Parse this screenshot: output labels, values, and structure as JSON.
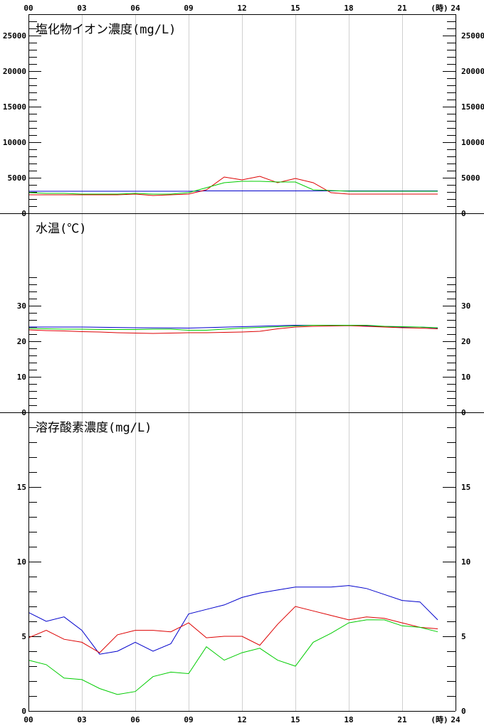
{
  "chart_data": {
    "type": "line",
    "x_ticks": [
      "00",
      "03",
      "06",
      "09",
      "12",
      "15",
      "18",
      "21",
      "24"
    ],
    "x_unit": "(時)",
    "x_range": [
      0,
      24
    ],
    "colors": {
      "blue": "#0000cc",
      "red": "#dd0000",
      "green": "#00cc00",
      "grid": "#d0d0d0",
      "axis": "#000000"
    },
    "panels": [
      {
        "title": "塩化物イオン濃度(mg/L)",
        "ylim": [
          0,
          28000
        ],
        "major_step": 5000,
        "minor_step": 1000,
        "y_ticks": [
          "0",
          "5000",
          "10000",
          "15000",
          "20000",
          "25000"
        ],
        "series": [
          {
            "color": "blue",
            "x": [
              0,
              9,
              10,
              11,
              12,
              13,
              14,
              15,
              16,
              17,
              18,
              19,
              20,
              21,
              22,
              23
            ],
            "values": [
              3100,
              3100,
              3150,
              3150,
              3150,
              3150,
              3150,
              3150,
              3150,
              3150,
              3150,
              3150,
              3150,
              3150,
              3150,
              3150
            ]
          },
          {
            "color": "red",
            "x": [
              0,
              1,
              2,
              3,
              4,
              5,
              6,
              7,
              8,
              9,
              10,
              11,
              12,
              13,
              14,
              15,
              16,
              17,
              18,
              19,
              20,
              21,
              22,
              23
            ],
            "values": [
              2600,
              2600,
              2600,
              2600,
              2600,
              2600,
              2700,
              2500,
              2600,
              2700,
              3300,
              5100,
              4700,
              5200,
              4300,
              4900,
              4300,
              2900,
              2700,
              2700,
              2700,
              2700,
              2700,
              2700
            ]
          },
          {
            "color": "green",
            "x": [
              0,
              1,
              2,
              3,
              4,
              5,
              6,
              7,
              8,
              9,
              10,
              11,
              12,
              13,
              14,
              15,
              16,
              17,
              18,
              19,
              20,
              21,
              22,
              23
            ],
            "values": [
              2900,
              2800,
              2800,
              2700,
              2700,
              2700,
              2800,
              2700,
              2700,
              2900,
              3600,
              4300,
              4500,
              4500,
              4400,
              4400,
              3300,
              3200,
              3100,
              3100,
              3100,
              3100,
              3100,
              3100
            ]
          }
        ]
      },
      {
        "title": "水温(℃)",
        "ylim": [
          0,
          56
        ],
        "major_step": 10,
        "minor_step": 2,
        "minor_max": 38,
        "y_ticks": [
          "0",
          "10",
          "20",
          "30"
        ],
        "series": [
          {
            "color": "blue",
            "x": [
              0,
              3,
              6,
              9,
              12,
              15,
              18,
              21,
              22,
              23
            ],
            "values": [
              24.0,
              24.0,
              23.8,
              23.7,
              24.1,
              24.5,
              24.5,
              24.0,
              24.0,
              23.7
            ]
          },
          {
            "color": "red",
            "x": [
              0,
              1,
              2,
              3,
              4,
              5,
              6,
              7,
              8,
              9,
              10,
              11,
              12,
              13,
              14,
              15,
              16,
              17,
              18,
              19,
              20,
              21,
              22,
              23
            ],
            "values": [
              23.2,
              23.0,
              22.9,
              22.7,
              22.6,
              22.4,
              22.3,
              22.2,
              22.3,
              22.4,
              22.4,
              22.5,
              22.6,
              22.8,
              23.5,
              24.0,
              24.2,
              24.3,
              24.4,
              24.2,
              24.0,
              23.8,
              23.7,
              23.5
            ]
          },
          {
            "color": "green",
            "x": [
              0,
              1,
              2,
              3,
              4,
              5,
              6,
              7,
              8,
              9,
              10,
              11,
              12,
              13,
              14,
              15,
              16,
              17,
              18,
              19,
              20,
              21,
              22,
              23
            ],
            "values": [
              23.6,
              23.5,
              23.4,
              23.4,
              23.3,
              23.3,
              23.3,
              23.4,
              23.4,
              23.1,
              23.1,
              23.4,
              23.7,
              23.9,
              24.1,
              24.3,
              24.5,
              24.5,
              24.5,
              24.5,
              24.2,
              24.1,
              24.0,
              23.8
            ]
          }
        ]
      },
      {
        "title": "溶存酸素濃度(mg/L)",
        "ylim": [
          0,
          20
        ],
        "major_step": 5,
        "minor_step": 1,
        "y_ticks": [
          "0",
          "5",
          "10",
          "15"
        ],
        "series": [
          {
            "color": "blue",
            "x": [
              0,
              1,
              2,
              3,
              4,
              5,
              6,
              7,
              8,
              9,
              10,
              11,
              12,
              13,
              14,
              15,
              16,
              17,
              18,
              19,
              20,
              21,
              22,
              23
            ],
            "values": [
              6.6,
              6.0,
              6.3,
              5.4,
              3.8,
              4.0,
              4.6,
              4.0,
              4.5,
              6.5,
              6.8,
              7.1,
              7.6,
              7.9,
              8.1,
              8.3,
              8.3,
              8.3,
              8.4,
              8.2,
              7.8,
              7.4,
              7.3,
              6.1
            ]
          },
          {
            "color": "red",
            "x": [
              0,
              1,
              2,
              3,
              4,
              5,
              6,
              7,
              8,
              9,
              10,
              11,
              12,
              13,
              14,
              15,
              16,
              17,
              18,
              19,
              20,
              21,
              22,
              23
            ],
            "values": [
              4.9,
              5.4,
              4.8,
              4.6,
              3.9,
              5.1,
              5.4,
              5.4,
              5.3,
              5.9,
              4.9,
              5.0,
              5.0,
              4.4,
              5.8,
              7.0,
              6.7,
              6.4,
              6.1,
              6.3,
              6.2,
              5.9,
              5.6,
              5.5
            ]
          },
          {
            "color": "green",
            "x": [
              0,
              1,
              2,
              3,
              4,
              5,
              6,
              7,
              8,
              9,
              10,
              11,
              12,
              13,
              14,
              15,
              16,
              17,
              18,
              19,
              20,
              21,
              22,
              23
            ],
            "values": [
              3.4,
              3.1,
              2.2,
              2.1,
              1.5,
              1.1,
              1.3,
              2.3,
              2.6,
              2.5,
              4.3,
              3.4,
              3.9,
              4.2,
              3.4,
              3.0,
              4.6,
              5.2,
              5.9,
              6.1,
              6.1,
              5.7,
              5.6,
              5.3
            ]
          }
        ]
      }
    ]
  }
}
